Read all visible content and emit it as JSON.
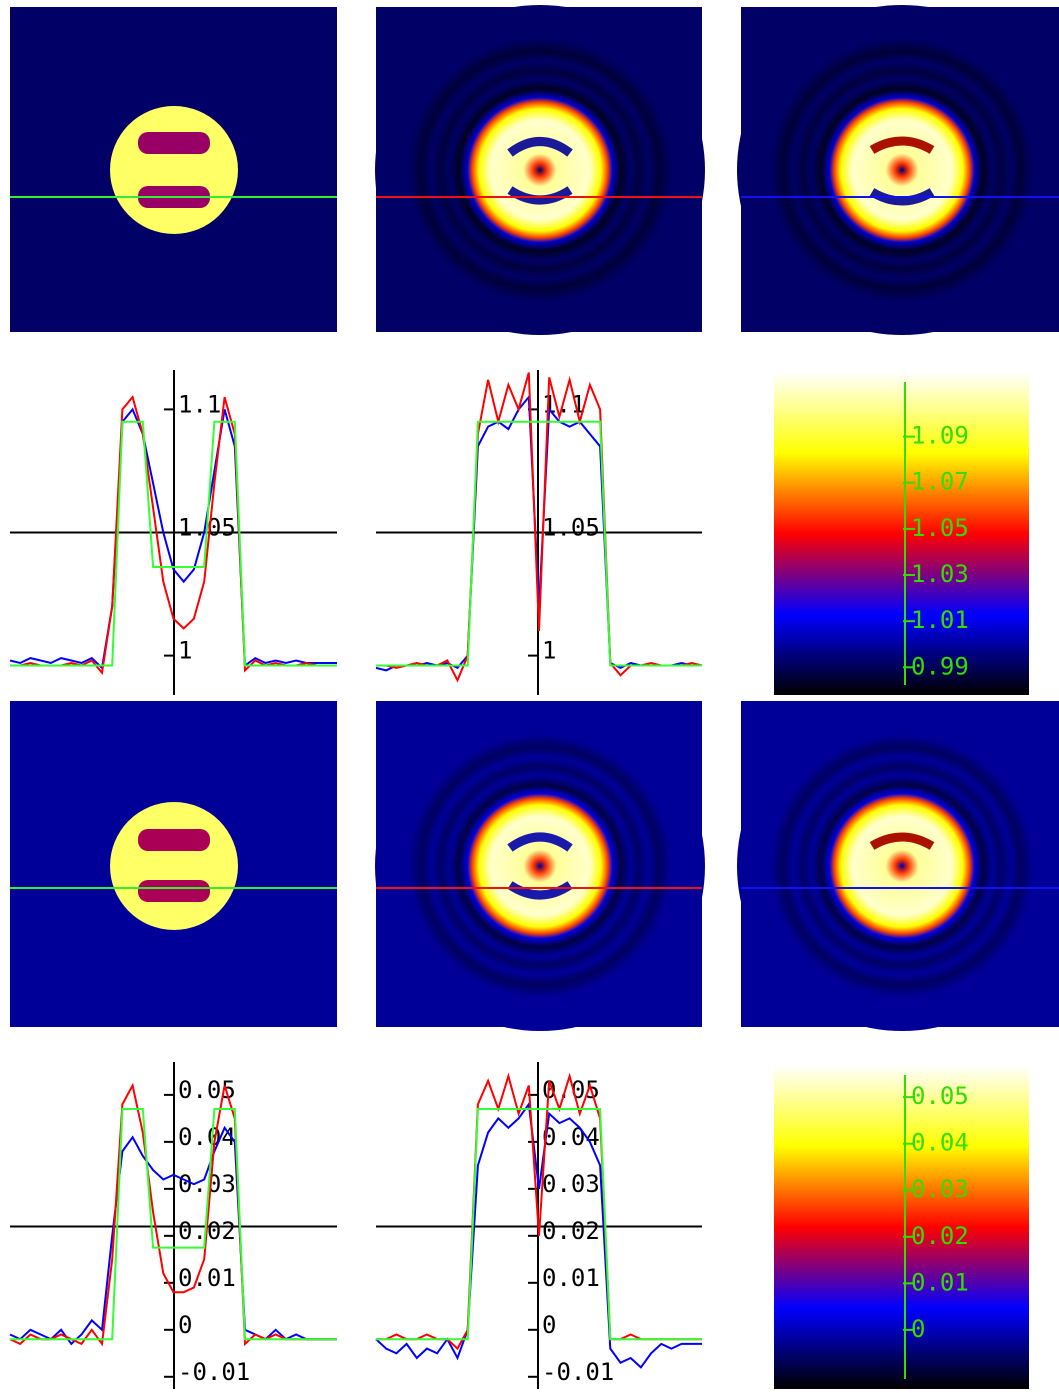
{
  "chart_data": [
    {
      "type": "line",
      "ylim": [
        0.984,
        1.116
      ],
      "yticks": [
        1,
        1.05,
        1.1
      ],
      "x_axis_at": 1.05,
      "series": [
        {
          "color": "#0000ff",
          "values": [
            0.998,
            0.997,
            0.999,
            0.998,
            0.997,
            0.999,
            0.998,
            0.997,
            0.999,
            0.995,
            1.02,
            1.095,
            1.1,
            1.09,
            1.07,
            1.05,
            1.035,
            1.03,
            1.035,
            1.05,
            1.075,
            1.1,
            1.085,
            0.996,
            0.999,
            0.997,
            0.998,
            0.997,
            0.998,
            0.997,
            0.997,
            0.997,
            0.997
          ]
        },
        {
          "color": "#ff0000",
          "values": [
            0.996,
            0.996,
            0.997,
            0.996,
            0.996,
            0.996,
            0.997,
            0.996,
            0.998,
            0.993,
            1.02,
            1.1,
            1.105,
            1.09,
            1.06,
            1.03,
            1.015,
            1.011,
            1.015,
            1.03,
            1.07,
            1.105,
            1.09,
            0.994,
            0.998,
            0.996,
            0.997,
            0.996,
            0.996,
            0.997,
            0.996,
            0.996,
            0.996
          ]
        },
        {
          "color": "#33ff33",
          "values": [
            0.996,
            0.996,
            0.996,
            0.996,
            0.996,
            0.996,
            0.996,
            0.996,
            0.996,
            0.996,
            0.996,
            1.095,
            1.095,
            1.095,
            1.036,
            1.036,
            1.036,
            1.036,
            1.036,
            1.036,
            1.095,
            1.095,
            1.095,
            0.996,
            0.996,
            0.996,
            0.996,
            0.996,
            0.996,
            0.996,
            0.996,
            0.996,
            0.996
          ]
        }
      ]
    },
    {
      "type": "line",
      "ylim": [
        0.984,
        1.116
      ],
      "yticks": [
        1,
        1.05,
        1.1
      ],
      "x_axis_at": 1.05,
      "series": [
        {
          "color": "#0000ff",
          "values": [
            0.995,
            0.994,
            0.996,
            0.996,
            0.996,
            0.997,
            0.996,
            0.997,
            0.995,
            1.0,
            1.085,
            1.093,
            1.095,
            1.092,
            1.1,
            1.105,
            1.02,
            1.1,
            1.095,
            1.093,
            1.095,
            1.09,
            1.085,
            0.997,
            0.995,
            0.997,
            0.996,
            0.996,
            0.996,
            0.996,
            0.997,
            0.996,
            0.996
          ]
        },
        {
          "color": "#ff0000",
          "values": [
            0.996,
            0.996,
            0.995,
            0.996,
            0.997,
            0.996,
            0.996,
            0.998,
            0.99,
            1.0,
            1.09,
            1.112,
            1.095,
            1.11,
            1.1,
            1.115,
            1.01,
            1.113,
            1.097,
            1.112,
            1.095,
            1.11,
            1.1,
            0.997,
            0.992,
            0.996,
            0.996,
            0.997,
            0.996,
            0.996,
            0.996,
            0.997,
            0.996
          ]
        },
        {
          "color": "#33ff33",
          "values": [
            0.996,
            0.996,
            0.996,
            0.996,
            0.996,
            0.996,
            0.996,
            0.996,
            0.996,
            0.996,
            1.095,
            1.095,
            1.095,
            1.095,
            1.095,
            1.095,
            1.095,
            1.095,
            1.095,
            1.095,
            1.095,
            1.095,
            1.095,
            0.996,
            0.996,
            0.996,
            0.996,
            0.996,
            0.996,
            0.996,
            0.996,
            0.996,
            0.996
          ]
        }
      ]
    },
    {
      "type": "colorbar",
      "ylim": [
        0.978,
        1.118
      ],
      "yticks": [
        0.99,
        1.01,
        1.03,
        1.05,
        1.07,
        1.09
      ],
      "colormap": [
        "#000000",
        "#0000ff",
        "#ff0000",
        "#ffff00",
        "#ffffff"
      ],
      "tick_color": "#33dd00"
    },
    {
      "type": "line",
      "ylim": [
        -0.0126,
        0.057
      ],
      "yticks": [
        -0.01,
        0,
        0.01,
        0.02,
        0.03,
        0.04,
        0.05
      ],
      "x_axis_at": 0.022,
      "series": [
        {
          "color": "#0000ff",
          "values": [
            -0.001,
            -0.002,
            0.0,
            -0.001,
            -0.002,
            0.0,
            -0.003,
            -0.001,
            0.002,
            0.0,
            0.02,
            0.038,
            0.041,
            0.037,
            0.034,
            0.032,
            0.033,
            0.032,
            0.031,
            0.032,
            0.038,
            0.043,
            0.04,
            0.0,
            -0.001,
            -0.002,
            0.0,
            -0.002,
            -0.001,
            -0.002,
            -0.002,
            -0.002,
            -0.002
          ]
        },
        {
          "color": "#ff0000",
          "values": [
            -0.002,
            -0.003,
            -0.001,
            -0.002,
            -0.002,
            -0.001,
            -0.002,
            -0.003,
            0.0,
            -0.003,
            0.015,
            0.048,
            0.052,
            0.042,
            0.025,
            0.012,
            0.008,
            0.008,
            0.009,
            0.015,
            0.04,
            0.052,
            0.045,
            -0.003,
            -0.001,
            -0.002,
            -0.001,
            -0.002,
            -0.002,
            -0.002,
            -0.002,
            -0.002,
            -0.002
          ]
        },
        {
          "color": "#33ff33",
          "values": [
            -0.002,
            -0.002,
            -0.002,
            -0.002,
            -0.002,
            -0.002,
            -0.002,
            -0.002,
            -0.002,
            -0.002,
            -0.002,
            0.047,
            0.047,
            0.047,
            0.0175,
            0.0175,
            0.0175,
            0.0175,
            0.0175,
            0.0175,
            0.047,
            0.047,
            0.047,
            -0.002,
            -0.002,
            -0.002,
            -0.002,
            -0.002,
            -0.002,
            -0.002,
            -0.002,
            -0.002,
            -0.002
          ]
        }
      ]
    },
    {
      "type": "line",
      "ylim": [
        -0.0126,
        0.057
      ],
      "yticks": [
        -0.01,
        0,
        0.01,
        0.02,
        0.03,
        0.04,
        0.05
      ],
      "x_axis_at": 0.022,
      "series": [
        {
          "color": "#0000ff",
          "values": [
            -0.002,
            -0.004,
            -0.005,
            -0.003,
            -0.006,
            -0.004,
            -0.005,
            -0.002,
            -0.006,
            0.0,
            0.035,
            0.042,
            0.045,
            0.043,
            0.045,
            0.048,
            0.03,
            0.046,
            0.044,
            0.045,
            0.043,
            0.04,
            0.035,
            -0.004,
            -0.007,
            -0.006,
            -0.008,
            -0.005,
            -0.003,
            -0.004,
            -0.003,
            -0.003,
            -0.003
          ]
        },
        {
          "color": "#ff0000",
          "values": [
            -0.002,
            -0.002,
            -0.001,
            -0.002,
            -0.002,
            -0.001,
            -0.002,
            -0.002,
            -0.004,
            0.0,
            0.048,
            0.053,
            0.047,
            0.054,
            0.046,
            0.052,
            0.02,
            0.053,
            0.047,
            0.054,
            0.046,
            0.052,
            0.045,
            -0.002,
            -0.002,
            -0.001,
            -0.002,
            -0.002,
            -0.002,
            -0.002,
            -0.002,
            -0.002,
            -0.002
          ]
        },
        {
          "color": "#33ff33",
          "values": [
            -0.002,
            -0.002,
            -0.002,
            -0.002,
            -0.002,
            -0.002,
            -0.002,
            -0.002,
            -0.002,
            -0.002,
            0.047,
            0.047,
            0.047,
            0.047,
            0.047,
            0.047,
            0.047,
            0.047,
            0.047,
            0.047,
            0.047,
            0.047,
            0.047,
            -0.002,
            -0.002,
            -0.002,
            -0.002,
            -0.002,
            -0.002,
            -0.002,
            -0.002,
            -0.002,
            -0.002
          ]
        }
      ]
    },
    {
      "type": "colorbar",
      "ylim": [
        -0.0127,
        0.0569
      ],
      "yticks": [
        0,
        0.01,
        0.02,
        0.03,
        0.04,
        0.05
      ],
      "colormap": [
        "#000000",
        "#0000ff",
        "#ff0000",
        "#ffff00",
        "#ffffff"
      ],
      "tick_color": "#33dd00"
    }
  ]
}
